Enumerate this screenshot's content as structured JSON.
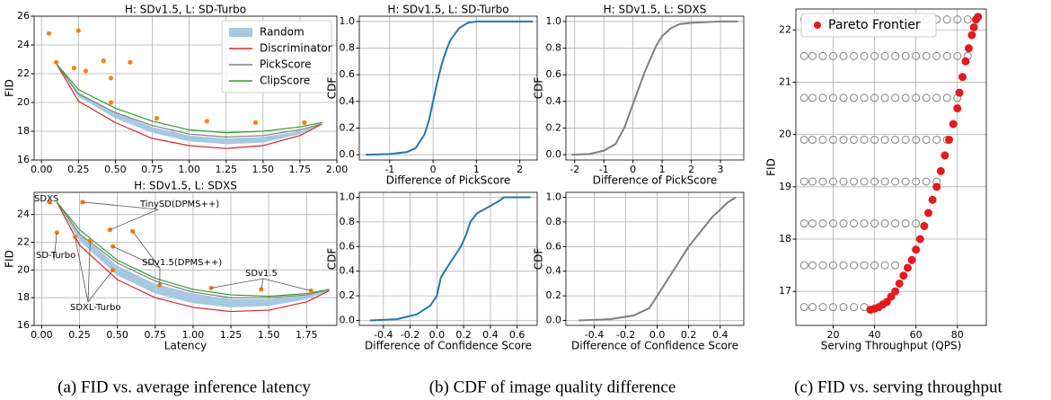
{
  "chart_data": [
    {
      "type": "line",
      "title": "H: SDv1.5, L: SD-Turbo",
      "y_label": "FID",
      "xlim": [
        -0.05,
        2.0
      ],
      "xticks": [
        {
          "value": 0,
          "label": "0.00"
        },
        {
          "value": 0.25,
          "label": "0.25"
        },
        {
          "value": 0.5,
          "label": "0.50"
        },
        {
          "value": 0.75,
          "label": "0.75"
        },
        {
          "value": 1,
          "label": "1.00"
        },
        {
          "value": 1.25,
          "label": "1.25"
        },
        {
          "value": 1.5,
          "label": "1.50"
        },
        {
          "value": 1.75,
          "label": "1.75"
        },
        {
          "value": 2,
          "label": "2.00"
        }
      ],
      "ylim": [
        16,
        26
      ],
      "yticks": [
        16,
        18,
        20,
        22,
        24,
        26
      ],
      "grid": true,
      "legend": "upper right",
      "x": [
        0.1,
        0.25,
        0.5,
        0.75,
        1.0,
        1.25,
        1.5,
        1.75,
        1.9
      ],
      "series": [
        {
          "name": "Random",
          "color": "#a6c8e0",
          "lower": [
            22.7,
            20.4,
            18.9,
            17.9,
            17.3,
            17.1,
            17.2,
            17.8,
            18.5
          ],
          "upper": [
            22.7,
            20.7,
            19.3,
            18.3,
            17.7,
            17.5,
            17.6,
            18.0,
            18.5
          ]
        },
        {
          "name": "Discriminator",
          "color": "#d62728",
          "values": [
            22.7,
            20.1,
            18.6,
            17.5,
            17.0,
            16.8,
            17.0,
            17.7,
            18.5
          ]
        },
        {
          "name": "PickScore",
          "color": "#7f7f7f",
          "values": [
            22.7,
            20.6,
            19.3,
            18.4,
            17.8,
            17.6,
            17.7,
            18.1,
            18.5
          ]
        },
        {
          "name": "ClipScore",
          "color": "#2ca02c",
          "values": [
            22.7,
            20.9,
            19.6,
            18.7,
            18.1,
            17.9,
            18.0,
            18.3,
            18.6
          ]
        }
      ],
      "points": {
        "color": "#ff7f0e",
        "x": [
          0.05,
          0.1,
          0.25,
          0.22,
          0.3,
          0.42,
          0.47,
          0.6,
          0.47,
          0.78,
          1.12,
          1.45,
          1.78
        ],
        "y": [
          24.8,
          22.8,
          25.0,
          22.4,
          22.2,
          22.9,
          21.7,
          22.8,
          20.0,
          18.9,
          18.7,
          18.6,
          18.6
        ]
      }
    },
    {
      "type": "line",
      "title": "H: SDv1.5, L: SDXS",
      "x_label": "Latency",
      "y_label": "FID",
      "xlim": [
        -0.05,
        1.95
      ],
      "xticks": [
        {
          "value": 0,
          "label": "0.00"
        },
        {
          "value": 0.25,
          "label": "0.25"
        },
        {
          "value": 0.5,
          "label": "0.50"
        },
        {
          "value": 0.75,
          "label": "0.75"
        },
        {
          "value": 1,
          "label": "1.00"
        },
        {
          "value": 1.25,
          "label": "1.25"
        },
        {
          "value": 1.5,
          "label": "1.50"
        },
        {
          "value": 1.75,
          "label": "1.75"
        }
      ],
      "ylim": [
        16,
        25.6
      ],
      "yticks": [
        16,
        18,
        20,
        22,
        24
      ],
      "grid": true,
      "x": [
        0.1,
        0.25,
        0.5,
        0.75,
        1.0,
        1.25,
        1.5,
        1.75,
        1.9
      ],
      "series": [
        {
          "color": "#a6c8e0",
          "lower": [
            24.9,
            22.1,
            19.6,
            18.3,
            17.6,
            17.3,
            17.4,
            17.9,
            18.5
          ],
          "upper": [
            24.9,
            22.6,
            20.3,
            19.0,
            18.3,
            17.9,
            17.9,
            18.2,
            18.6
          ]
        },
        {
          "color": "#d62728",
          "values": [
            24.9,
            21.8,
            19.3,
            18.0,
            17.3,
            17.0,
            17.1,
            17.7,
            18.5
          ]
        },
        {
          "color": "#7f7f7f",
          "values": [
            24.9,
            22.6,
            20.5,
            19.2,
            18.4,
            18.0,
            18.0,
            18.2,
            18.6
          ]
        },
        {
          "color": "#2ca02c",
          "values": [
            24.9,
            22.9,
            20.7,
            19.4,
            18.6,
            18.2,
            18.1,
            18.3,
            18.6
          ]
        }
      ],
      "points": {
        "color": "#ff7f0e",
        "x": [
          0.05,
          0.1,
          0.27,
          0.22,
          0.32,
          0.45,
          0.47,
          0.6,
          0.47,
          0.78,
          1.12,
          1.45,
          1.78
        ],
        "y": [
          24.9,
          22.7,
          24.9,
          22.4,
          22.1,
          22.9,
          21.7,
          22.8,
          20.0,
          18.9,
          18.7,
          18.6,
          18.5
        ]
      },
      "annotations": [
        "SDXS",
        "TinySD(DPMS++)",
        "SD-Turbo",
        "SDv1.5(DPMS++)",
        "SDv1.5",
        "SDXL-Turbo"
      ]
    },
    {
      "type": "line",
      "title": "H: SDv1.5, L: SD-Turbo",
      "x_label": "Difference of PickScore",
      "y_label": "CDF",
      "xlim": [
        -1.7,
        2.4
      ],
      "xticks": [
        -1,
        0,
        1,
        2
      ],
      "ylim": [
        -0.04,
        1.04
      ],
      "yticks": [
        {
          "value": 0,
          "label": "0.0"
        },
        0.2,
        0.4,
        0.6,
        0.8,
        {
          "value": 1,
          "label": "1.0"
        }
      ],
      "grid": true,
      "x": [
        -1.55,
        -1.0,
        -0.6,
        -0.4,
        -0.2,
        -0.1,
        0,
        0.1,
        0.2,
        0.3,
        0.4,
        0.6,
        0.8,
        1.0,
        1.5,
        2.3
      ],
      "series": [
        {
          "color": "#1f77b4",
          "values": [
            0,
            0.005,
            0.02,
            0.05,
            0.15,
            0.25,
            0.4,
            0.55,
            0.68,
            0.78,
            0.86,
            0.95,
            0.99,
            1.0,
            1.0,
            1.0
          ]
        }
      ]
    },
    {
      "type": "line",
      "title": "H: SDv1.5, L: SDXS",
      "x_label": "Difference of PickScore",
      "y_label": "CDF",
      "xlim": [
        -2.3,
        3.8
      ],
      "xticks": [
        -2,
        -1,
        0,
        1,
        2,
        3
      ],
      "ylim": [
        -0.04,
        1.04
      ],
      "yticks": [
        {
          "value": 0,
          "label": "0.0"
        },
        0.2,
        0.4,
        0.6,
        0.8,
        {
          "value": 1,
          "label": "1.0"
        }
      ],
      "grid": true,
      "x": [
        -2.1,
        -1.5,
        -1,
        -0.6,
        -0.3,
        0,
        0.2,
        0.4,
        0.6,
        0.8,
        1.0,
        1.3,
        1.6,
        2,
        3,
        3.6
      ],
      "series": [
        {
          "color": "#7f7f7f",
          "values": [
            0,
            0.005,
            0.03,
            0.08,
            0.2,
            0.38,
            0.5,
            0.62,
            0.72,
            0.82,
            0.89,
            0.95,
            0.98,
            0.99,
            1,
            1
          ]
        }
      ]
    },
    {
      "type": "line",
      "x_label": "Difference of Confidence Score",
      "y_label": "CDF",
      "xlim": [
        -0.58,
        0.75
      ],
      "xticks": [
        -0.4,
        -0.2,
        {
          "value": 0,
          "label": "0.0"
        },
        0.2,
        0.4,
        0.6
      ],
      "ylim": [
        -0.04,
        1.04
      ],
      "yticks": [
        {
          "value": 0,
          "label": "0.0"
        },
        0.2,
        0.4,
        0.6,
        0.8,
        {
          "value": 1,
          "label": "1.0"
        }
      ],
      "grid": true,
      "x": [
        -0.5,
        -0.3,
        -0.15,
        -0.05,
        0,
        0.03,
        0.1,
        0.18,
        0.22,
        0.25,
        0.3,
        0.4,
        0.48,
        0.5,
        0.7
      ],
      "series": [
        {
          "color": "#1f77b4",
          "values": [
            0,
            0.01,
            0.05,
            0.12,
            0.2,
            0.35,
            0.47,
            0.6,
            0.7,
            0.8,
            0.87,
            0.93,
            0.98,
            1,
            1
          ]
        }
      ]
    },
    {
      "type": "line",
      "x_label": "Difference of Confidence Score",
      "y_label": "CDF",
      "xlim": [
        -0.58,
        0.55
      ],
      "xticks": [
        -0.4,
        -0.2,
        {
          "value": 0,
          "label": "0.0"
        },
        0.2,
        0.4
      ],
      "ylim": [
        -0.04,
        1.04
      ],
      "yticks": [
        {
          "value": 0,
          "label": "0.0"
        },
        0.2,
        0.4,
        0.6,
        0.8,
        {
          "value": 1,
          "label": "1.0"
        }
      ],
      "grid": true,
      "x": [
        -0.5,
        -0.3,
        -0.15,
        -0.05,
        0,
        0.05,
        0.1,
        0.15,
        0.2,
        0.25,
        0.3,
        0.35,
        0.4,
        0.45,
        0.5
      ],
      "series": [
        {
          "color": "#7f7f7f",
          "values": [
            0,
            0.01,
            0.04,
            0.1,
            0.2,
            0.3,
            0.4,
            0.5,
            0.6,
            0.68,
            0.76,
            0.84,
            0.9,
            0.96,
            1.0
          ]
        }
      ]
    },
    {
      "type": "scatter",
      "x_label": "Serving Throughput (QPS)",
      "y_label": "FID",
      "xlim": [
        2,
        94
      ],
      "xticks": [
        20,
        40,
        60,
        80
      ],
      "ylim": [
        16.35,
        22.4
      ],
      "yticks": [
        17,
        18,
        19,
        20,
        21,
        22
      ],
      "grid": true,
      "legend": "upper left",
      "background_points": {
        "color": "#808080",
        "x": [
          6,
          6,
          6,
          6,
          6,
          6,
          6,
          6,
          10,
          10,
          10,
          10,
          10,
          10,
          10,
          10,
          15,
          15,
          15,
          15,
          15,
          15,
          15,
          15,
          20,
          20,
          20,
          20,
          20,
          20,
          20,
          20,
          25,
          25,
          25,
          25,
          25,
          25,
          25,
          25,
          30,
          30,
          30,
          30,
          30,
          30,
          30,
          30,
          35,
          35,
          35,
          35,
          35,
          35,
          35,
          35,
          40,
          40,
          40,
          40,
          40,
          40,
          40,
          45,
          45,
          45,
          45,
          45,
          45,
          45,
          50,
          50,
          50,
          50,
          50,
          50,
          50,
          55,
          55,
          55,
          55,
          55,
          55,
          60,
          60,
          60,
          60,
          60,
          60,
          65,
          65,
          65,
          65,
          65,
          70,
          70,
          70,
          70,
          70,
          75,
          75,
          75,
          75,
          80,
          80,
          80,
          85,
          85
        ],
        "y": [
          16.7,
          17.5,
          18.3,
          19.1,
          19.9,
          20.7,
          21.5,
          22.2,
          16.7,
          17.5,
          18.3,
          19.1,
          19.9,
          20.7,
          21.5,
          22.2,
          16.7,
          17.5,
          18.3,
          19.1,
          19.9,
          20.7,
          21.5,
          22.2,
          16.7,
          17.5,
          18.3,
          19.1,
          19.9,
          20.7,
          21.5,
          22.2,
          16.7,
          17.5,
          18.3,
          19.1,
          19.9,
          20.7,
          21.5,
          22.2,
          16.7,
          17.5,
          18.3,
          19.1,
          19.9,
          20.7,
          21.5,
          22.2,
          16.7,
          17.5,
          18.3,
          19.1,
          19.9,
          20.7,
          21.5,
          22.2,
          17.5,
          18.3,
          19.1,
          19.9,
          20.7,
          21.5,
          22.2,
          17.5,
          18.3,
          19.1,
          19.9,
          20.7,
          21.5,
          22.2,
          17.5,
          18.3,
          19.1,
          19.9,
          20.7,
          21.5,
          22.2,
          18.3,
          19.1,
          19.9,
          20.7,
          21.5,
          22.2,
          18.3,
          19.1,
          19.9,
          20.7,
          21.5,
          22.2,
          19.1,
          19.9,
          20.7,
          21.5,
          22.2,
          19.1,
          19.9,
          20.7,
          21.5,
          22.2,
          19.9,
          20.7,
          21.5,
          22.2,
          20.7,
          21.5,
          22.2,
          21.5,
          22.2
        ]
      },
      "series": [
        {
          "name": "Pareto Frontier",
          "color": "#e41a1c",
          "x": [
            38,
            40,
            42,
            44,
            46,
            48,
            50,
            52,
            54,
            56,
            58,
            60,
            62,
            64,
            66,
            68,
            70,
            72,
            74,
            76,
            78,
            80,
            81,
            82.5,
            84,
            85.5,
            87,
            88,
            89,
            90
          ],
          "values": [
            16.65,
            16.67,
            16.7,
            16.75,
            16.8,
            16.9,
            17.0,
            17.15,
            17.3,
            17.45,
            17.6,
            17.8,
            18.0,
            18.25,
            18.5,
            18.75,
            19.0,
            19.3,
            19.6,
            19.9,
            20.2,
            20.5,
            20.8,
            21.1,
            21.4,
            21.65,
            21.9,
            22.05,
            22.2,
            22.25
          ]
        }
      ]
    }
  ],
  "captions": [
    "(a) FID vs. average inference latency",
    "(b) CDF of image quality difference",
    "(c) FID vs. serving throughput"
  ]
}
